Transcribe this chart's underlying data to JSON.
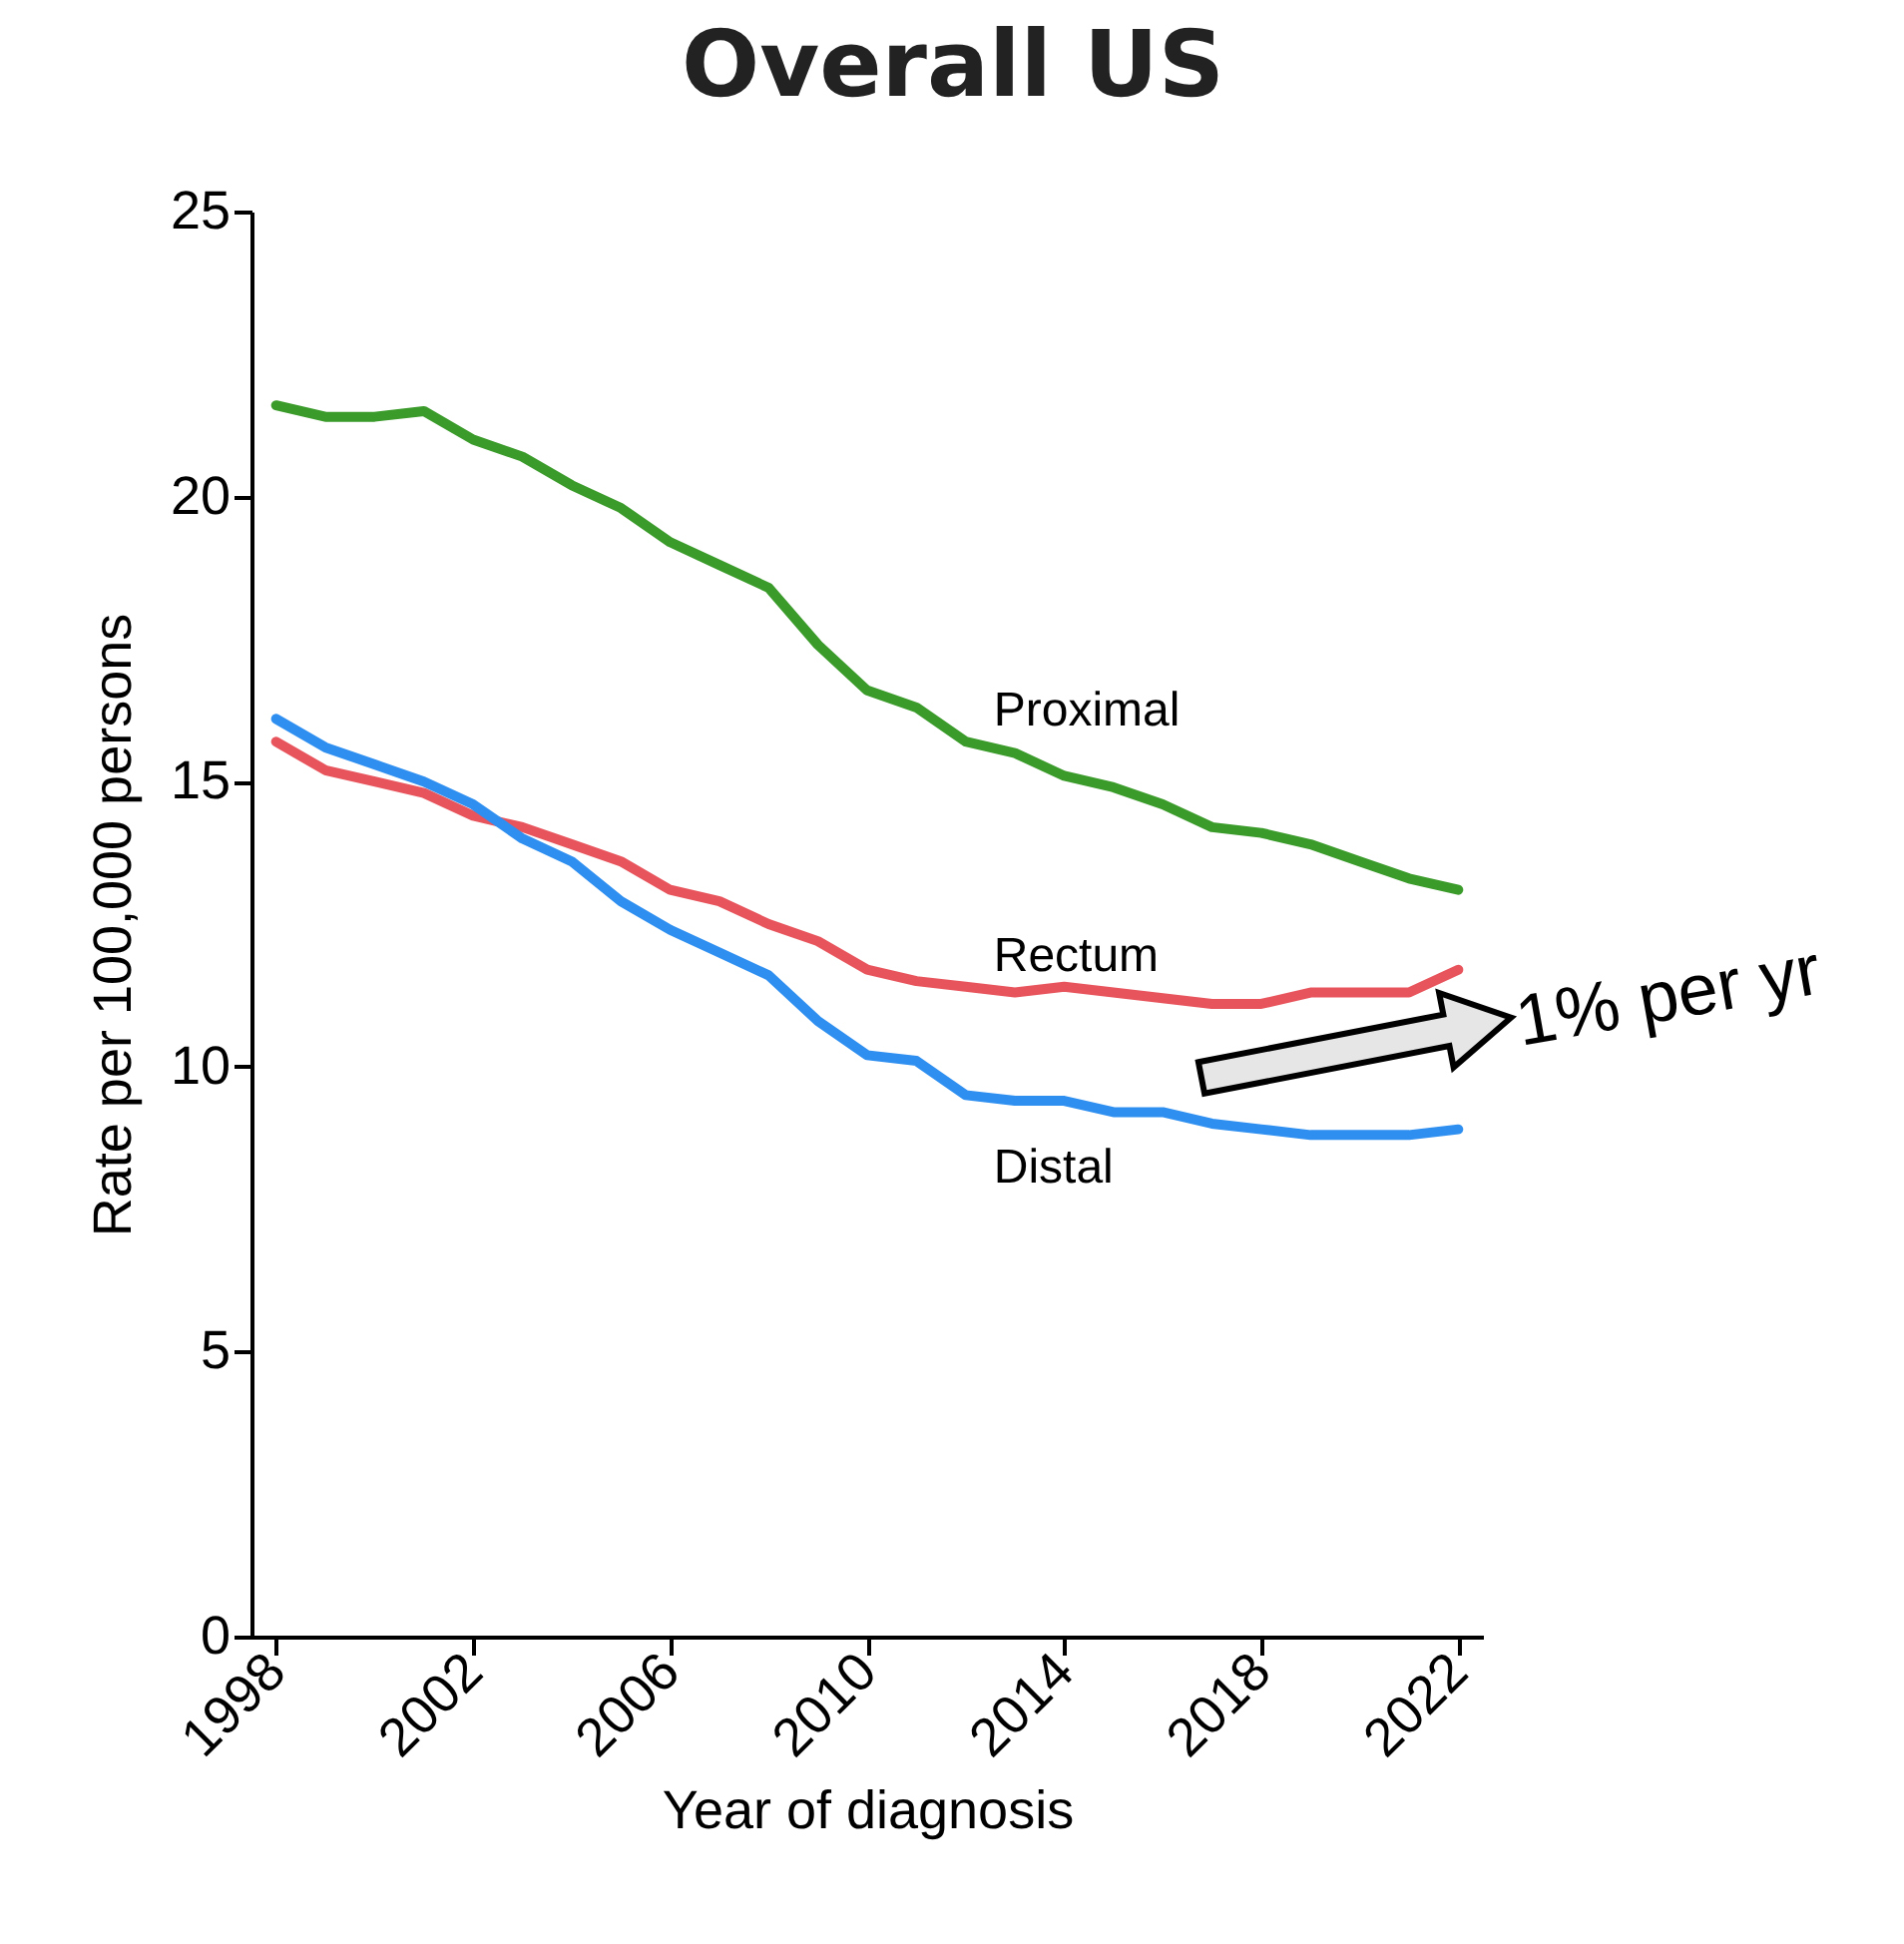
{
  "chart_data": {
    "type": "line",
    "title": "Overall US",
    "xlabel": "Year of diagnosis",
    "ylabel": "Rate per 100,000 persons",
    "x": [
      1998,
      1999,
      2000,
      2001,
      2002,
      2003,
      2004,
      2005,
      2006,
      2007,
      2008,
      2009,
      2010,
      2011,
      2012,
      2013,
      2014,
      2015,
      2016,
      2017,
      2018,
      2019,
      2020,
      2021,
      2022
    ],
    "series": [
      {
        "name": "Proximal",
        "color": "#3a9a2a",
        "values": [
          21.6,
          21.4,
          21.4,
          21.5,
          21.0,
          20.7,
          20.2,
          19.8,
          19.2,
          18.8,
          18.4,
          17.4,
          16.6,
          16.3,
          15.7,
          15.5,
          15.1,
          14.9,
          14.6,
          14.2,
          14.1,
          13.9,
          13.6,
          13.3,
          13.1
        ]
      },
      {
        "name": "Rectum",
        "color": "#e8545c",
        "values": [
          15.7,
          15.2,
          15.0,
          14.8,
          14.4,
          14.2,
          13.9,
          13.6,
          13.1,
          12.9,
          12.5,
          12.2,
          11.7,
          11.5,
          11.4,
          11.3,
          11.4,
          11.3,
          11.2,
          11.1,
          11.1,
          11.3,
          11.3,
          11.3,
          11.7
        ]
      },
      {
        "name": "Distal",
        "color": "#2f8ff0",
        "values": [
          16.1,
          15.6,
          15.3,
          15.0,
          14.6,
          14.0,
          13.6,
          12.9,
          12.4,
          12.0,
          11.6,
          10.8,
          10.2,
          10.1,
          9.5,
          9.4,
          9.4,
          9.2,
          9.2,
          9.0,
          8.9,
          8.8,
          8.8,
          8.8,
          8.9
        ]
      }
    ],
    "xlim": [
      1997.5,
      2022.5
    ],
    "xticks": [
      1998,
      2002,
      2006,
      2010,
      2014,
      2018,
      2022
    ],
    "ylim": [
      0,
      25
    ],
    "yticks": [
      0,
      5,
      10,
      15,
      20,
      25
    ],
    "grid": false,
    "legend": false,
    "marker": "none",
    "line_style": "solid",
    "annotations": [
      "1% per yr"
    ]
  }
}
